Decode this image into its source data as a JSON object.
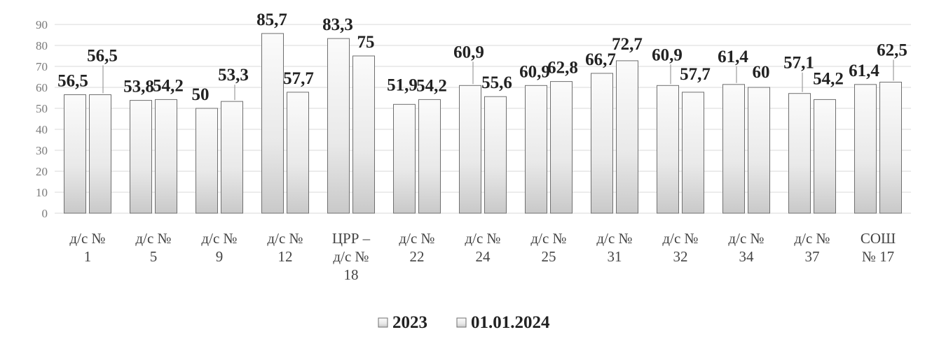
{
  "chart_data": {
    "type": "bar",
    "categories": [
      [
        "д/с №",
        "1"
      ],
      [
        "д/с №",
        "5"
      ],
      [
        "д/с №",
        "9"
      ],
      [
        "д/с №",
        "12"
      ],
      [
        "ЦРР –",
        "д/с №",
        "18"
      ],
      [
        "д/с №",
        "22"
      ],
      [
        "д/с №",
        "24"
      ],
      [
        "д/с №",
        "25"
      ],
      [
        "д/с №",
        "31"
      ],
      [
        "д/с №",
        "32"
      ],
      [
        "д/с №",
        "34"
      ],
      [
        "д/с №",
        "37"
      ],
      [
        "СОШ",
        "№ 17"
      ]
    ],
    "series": [
      {
        "name": "2023",
        "values": [
          56.5,
          53.8,
          50,
          85.7,
          83.3,
          51.9,
          60.9,
          60.9,
          66.7,
          60.9,
          61.4,
          57.1,
          61.4
        ],
        "labels": [
          "56,5",
          "53,8",
          "50",
          "85,7",
          "83,3",
          "51,9",
          "60,9",
          "60,9",
          "66,7",
          "60,9",
          "61,4",
          "57,1",
          "61,4"
        ]
      },
      {
        "name": "01.01.2024",
        "values": [
          56.5,
          54.2,
          53.3,
          57.7,
          75,
          54.2,
          55.6,
          62.8,
          72.7,
          57.7,
          60,
          54.2,
          62.5
        ],
        "labels": [
          "56,5",
          "54,2",
          "53,3",
          "57,7",
          "75",
          "54,2",
          "55,6",
          "62,8",
          "72,7",
          "57,7",
          "60",
          "54,2",
          "62,5"
        ]
      }
    ],
    "yticks": [
      "0",
      "10",
      "20",
      "30",
      "40",
      "50",
      "60",
      "70",
      "80",
      "90"
    ],
    "ylim": [
      0,
      90
    ],
    "grid": true,
    "legend": "bottom"
  }
}
